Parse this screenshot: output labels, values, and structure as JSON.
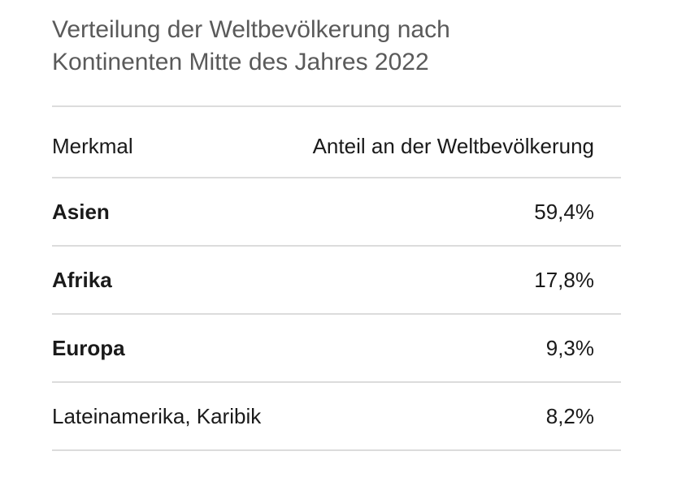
{
  "header": {
    "title": "Verteilung der Weltbevölkerung nach Kontinenten Mitte des Jahres 2022"
  },
  "table": {
    "columns": [
      "Merkmal",
      "Anteil an der Weltbevölkerung"
    ],
    "rows": [
      [
        "Asien",
        "59,4%"
      ],
      [
        "Afrika",
        "17,8%"
      ],
      [
        "Europa",
        "9,3%"
      ],
      [
        "Lateinamerika, Karibik",
        "8,2%"
      ]
    ]
  }
}
